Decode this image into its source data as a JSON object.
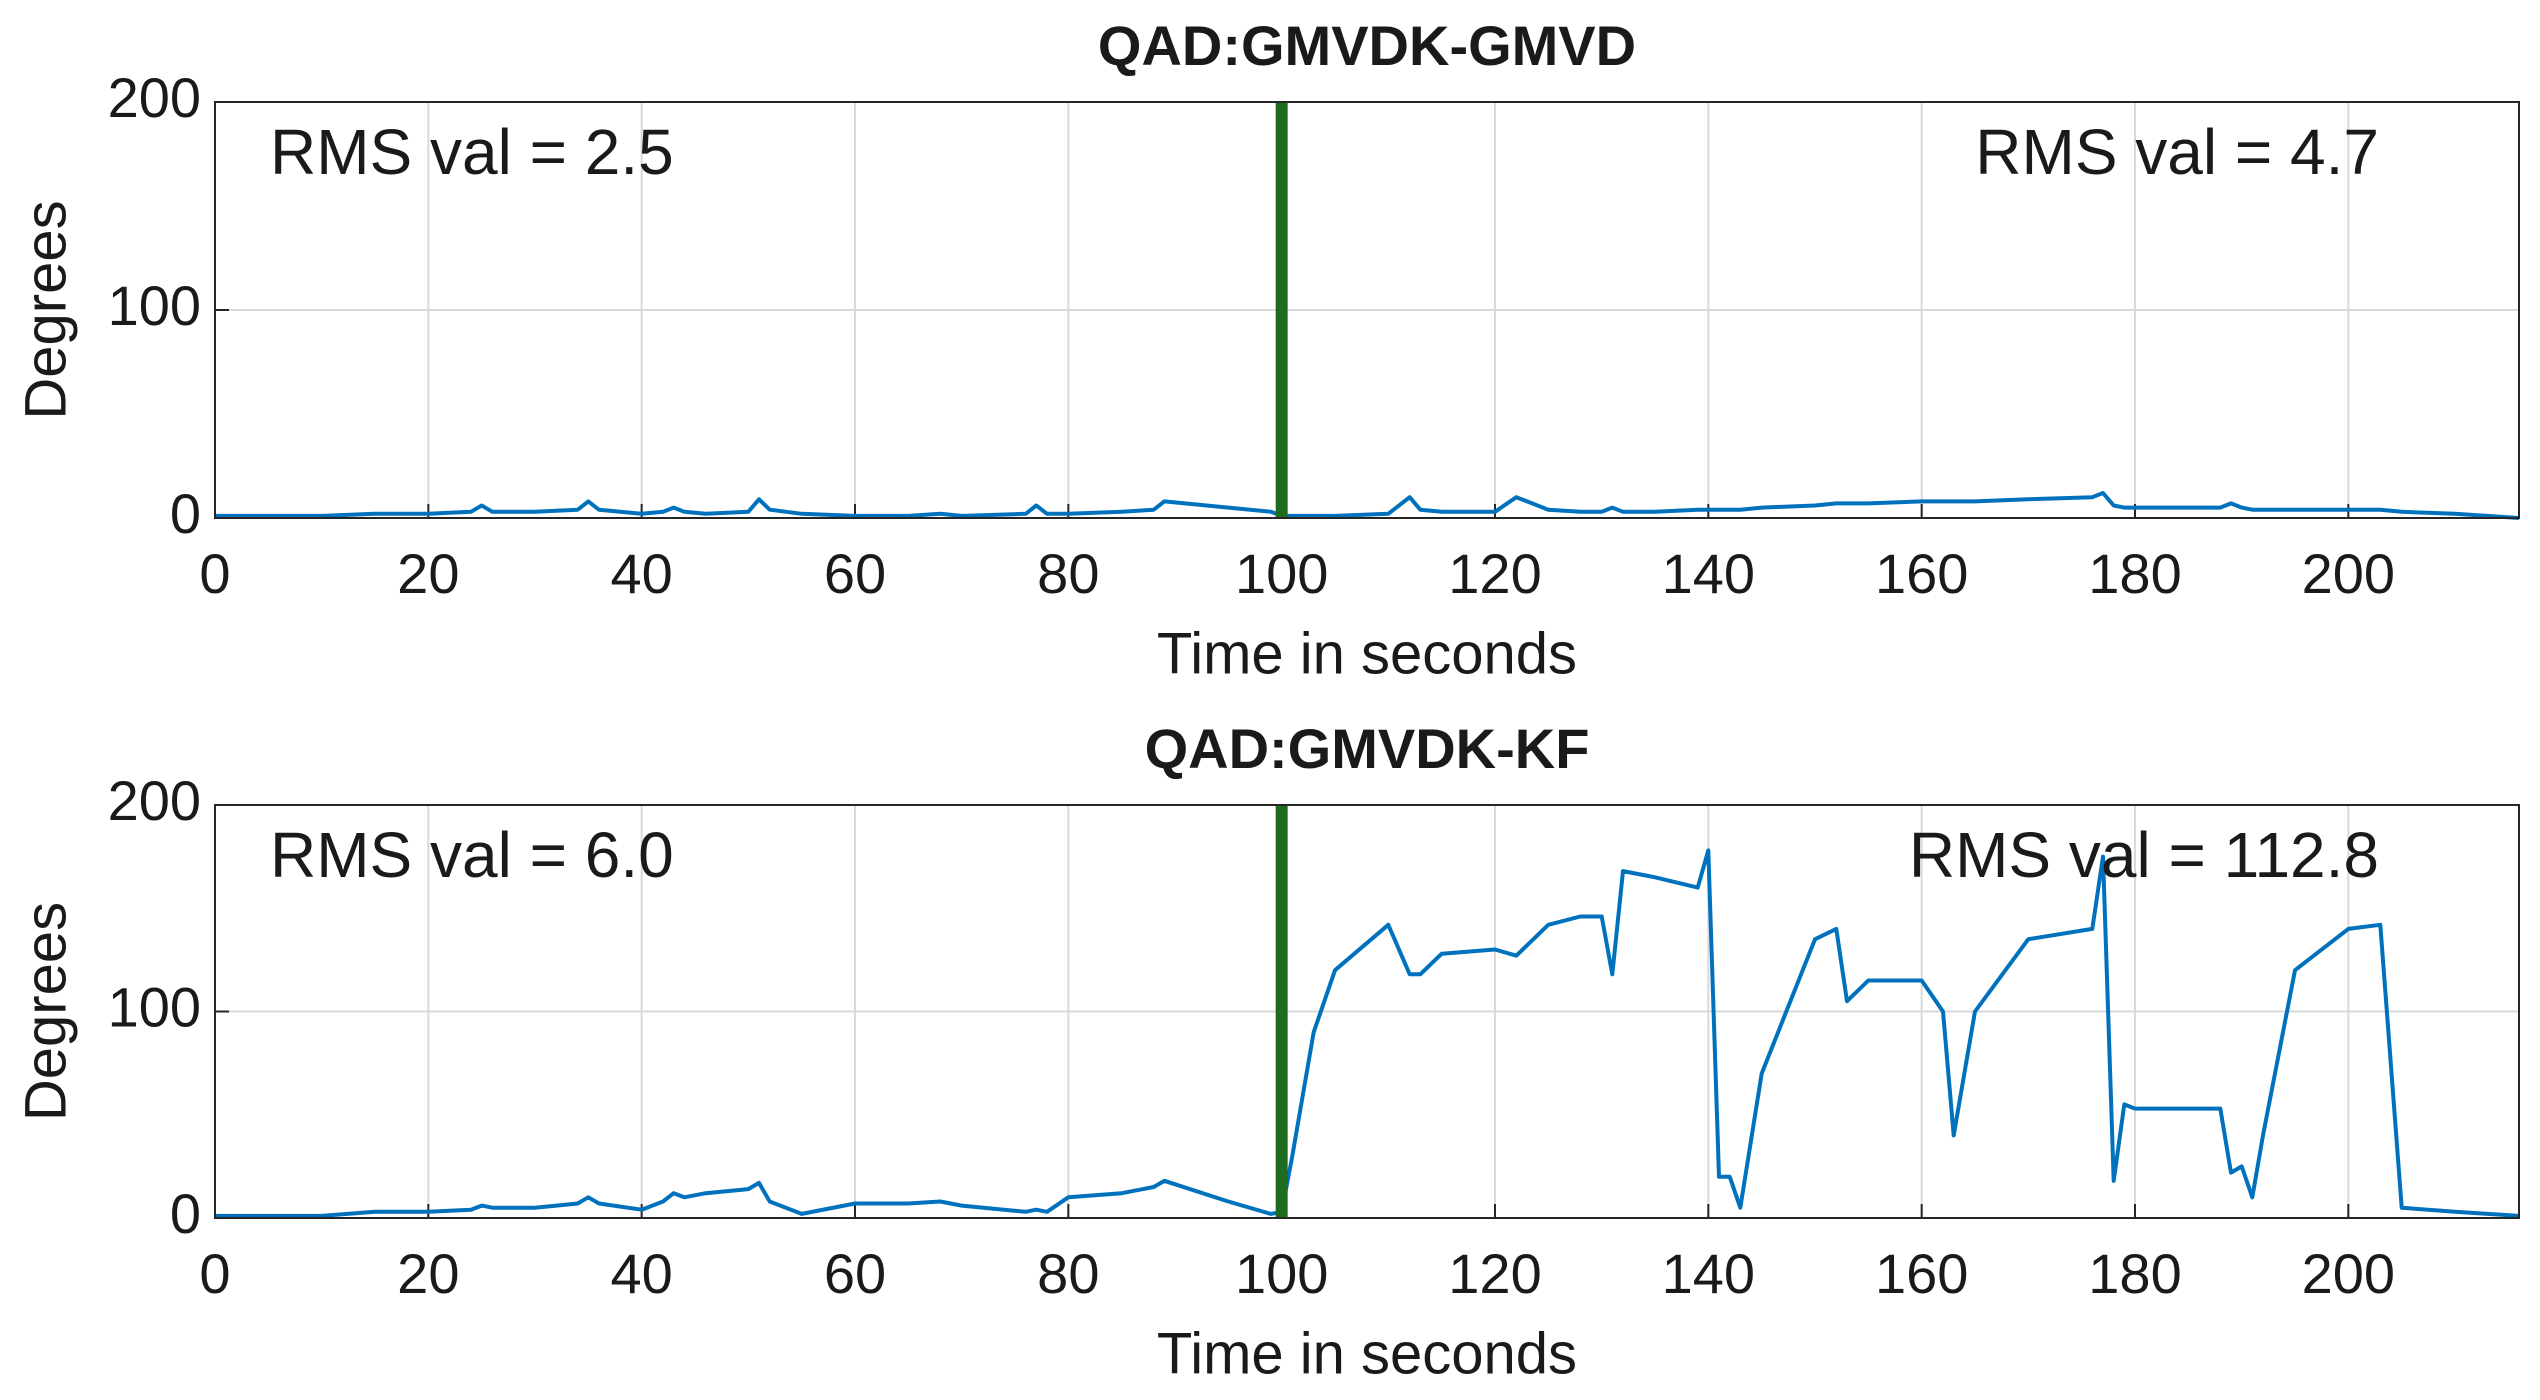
{
  "chart_data": [
    {
      "type": "line",
      "title": "QAD:GMVDK-GMVD",
      "x_label": "Time in seconds",
      "y_label": "Degrees",
      "annotations": [
        "RMS val = 2.5",
        "RMS val = 4.7"
      ],
      "vline": {
        "x": 100,
        "color": "#1f6b1f"
      },
      "xlim": [
        0,
        216
      ],
      "ylim": [
        0,
        200
      ],
      "xticks": [
        0,
        20,
        40,
        60,
        80,
        100,
        120,
        140,
        160,
        180,
        200
      ],
      "yticks": [
        0,
        100,
        200
      ],
      "grid": true,
      "x": [
        0,
        10,
        15,
        20,
        24,
        25,
        26,
        30,
        34,
        35,
        36,
        40,
        42,
        43,
        44,
        46,
        50,
        51,
        52,
        55,
        60,
        65,
        68,
        70,
        76,
        77,
        78,
        80,
        85,
        88,
        89,
        95,
        99,
        100,
        101,
        103,
        105,
        110,
        112,
        113,
        115,
        120,
        122,
        125,
        128,
        130,
        131,
        132,
        135,
        139,
        140,
        141,
        142,
        143,
        145,
        150,
        152,
        153,
        155,
        160,
        162,
        163,
        165,
        170,
        176,
        177,
        178,
        179,
        180,
        185,
        188,
        189,
        190,
        191,
        192,
        195,
        200,
        203,
        205,
        210,
        216
      ],
      "series": [
        {
          "color": "#0072bd",
          "values": [
            1,
            1,
            2,
            2,
            3,
            6,
            3,
            3,
            4,
            8,
            4,
            2,
            3,
            5,
            3,
            2,
            3,
            9,
            4,
            2,
            1,
            1,
            2,
            1,
            2,
            6,
            2,
            2,
            3,
            4,
            8,
            5,
            3,
            1,
            1,
            1,
            1,
            2,
            10,
            4,
            3,
            3,
            10,
            4,
            3,
            3,
            5,
            3,
            3,
            4,
            4,
            4,
            4,
            4,
            5,
            6,
            7,
            7,
            7,
            8,
            8,
            8,
            8,
            9,
            10,
            12,
            6,
            5,
            5,
            5,
            5,
            7,
            5,
            4,
            4,
            4,
            4,
            4,
            3,
            2,
            0
          ]
        }
      ]
    },
    {
      "type": "line",
      "title": "QAD:GMVDK-KF",
      "x_label": "Time in seconds",
      "y_label": "Degrees",
      "annotations": [
        "RMS val = 6.0",
        "RMS val = 112.8"
      ],
      "vline": {
        "x": 100,
        "color": "#1f6b1f"
      },
      "xlim": [
        0,
        216
      ],
      "ylim": [
        0,
        200
      ],
      "xticks": [
        0,
        20,
        40,
        60,
        80,
        100,
        120,
        140,
        160,
        180,
        200
      ],
      "yticks": [
        0,
        100,
        200
      ],
      "grid": true,
      "x": [
        0,
        10,
        15,
        20,
        24,
        25,
        26,
        30,
        34,
        35,
        36,
        40,
        42,
        43,
        44,
        46,
        50,
        51,
        52,
        55,
        60,
        65,
        68,
        70,
        76,
        77,
        78,
        80,
        85,
        88,
        89,
        95,
        99,
        100,
        101,
        103,
        105,
        110,
        112,
        113,
        115,
        120,
        122,
        125,
        128,
        130,
        131,
        132,
        135,
        139,
        140,
        141,
        142,
        143,
        145,
        150,
        152,
        153,
        155,
        160,
        162,
        163,
        165,
        170,
        176,
        177,
        178,
        179,
        180,
        185,
        188,
        189,
        190,
        191,
        192,
        195,
        200,
        203,
        205,
        210,
        216
      ],
      "series": [
        {
          "color": "#0072bd",
          "values": [
            1,
            1,
            3,
            3,
            4,
            6,
            5,
            5,
            7,
            10,
            7,
            4,
            8,
            12,
            10,
            12,
            14,
            17,
            8,
            2,
            7,
            7,
            8,
            6,
            3,
            4,
            3,
            10,
            12,
            15,
            18,
            8,
            2,
            3,
            30,
            90,
            120,
            142,
            118,
            118,
            128,
            130,
            127,
            142,
            146,
            146,
            118,
            168,
            165,
            160,
            178,
            20,
            20,
            5,
            70,
            135,
            140,
            105,
            115,
            115,
            100,
            40,
            100,
            135,
            140,
            175,
            18,
            55,
            53,
            53,
            53,
            22,
            25,
            10,
            40,
            120,
            140,
            142,
            5,
            3,
            1
          ]
        }
      ]
    }
  ]
}
